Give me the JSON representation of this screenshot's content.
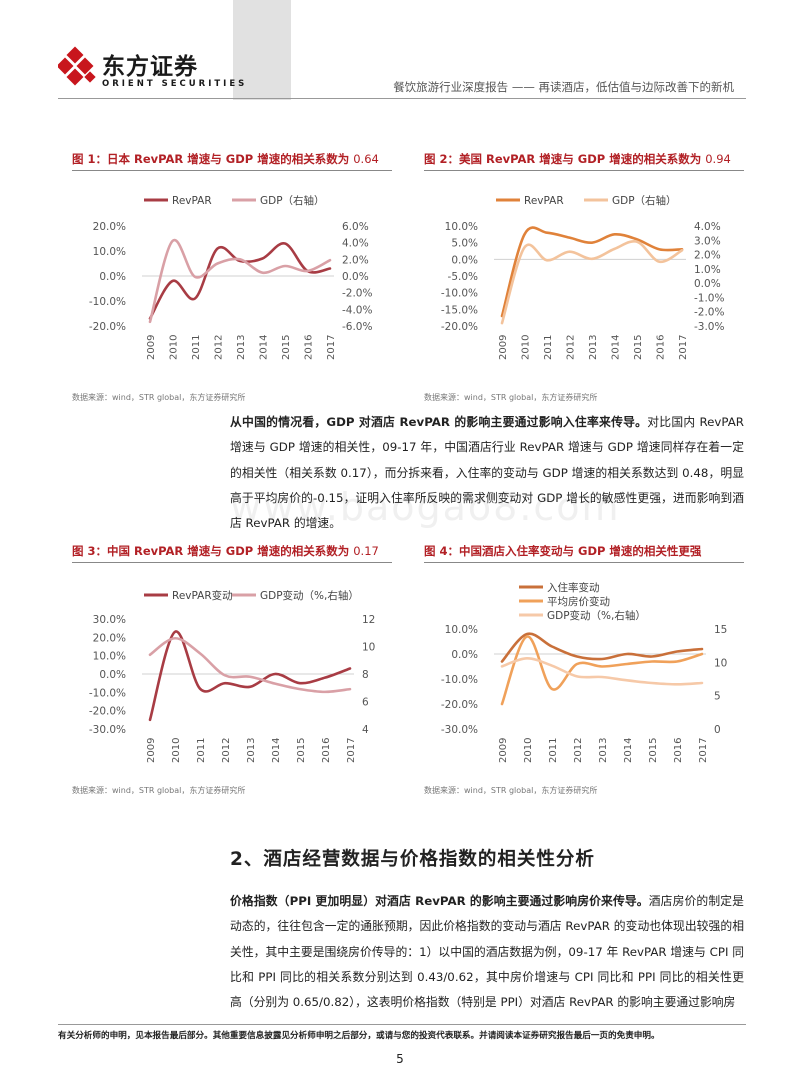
{
  "header": {
    "logo_cn": "东方证券",
    "logo_en": "ORIENT SECURITIES",
    "report_title": "餐饮旅游行业深度报告 —— 再读酒店，低估值与边际改善下的新机"
  },
  "watermark": "www.baogao8.com",
  "figures": [
    {
      "title": "图 1：日本 RevPAR 增速与 GDP 增速的相关系数为 ",
      "coef": "0.64",
      "source": "数据来源：wind，STR global，东方证券研究所",
      "chart_data": {
        "type": "line",
        "categories": [
          "2009",
          "2010",
          "2011",
          "2012",
          "2013",
          "2014",
          "2015",
          "2016",
          "2017"
        ],
        "series": [
          {
            "name": "RevPAR",
            "axis": "left",
            "color": "#a83c44",
            "values": [
              -17,
              -2,
              -9,
              11,
              6,
              7,
              13,
              2,
              3
            ]
          },
          {
            "name": "GDP（右轴）",
            "axis": "right",
            "color": "#d9a0a6",
            "values": [
              -5.5,
              4.2,
              -0.1,
              1.5,
              2.0,
              0.4,
              1.2,
              0.6,
              1.9
            ]
          }
        ],
        "ylim_left": [
          -20,
          20
        ],
        "ylim_right": [
          -6,
          6
        ],
        "left_ticks": [
          "20.0%",
          "10.0%",
          "0.0%",
          "-10.0%",
          "-20.0%"
        ],
        "right_ticks": [
          "6.0%",
          "4.0%",
          "2.0%",
          "0.0%",
          "-2.0%",
          "-4.0%",
          "-6.0%"
        ]
      }
    },
    {
      "title": "图 2：美国 RevPAR 增速与 GDP 增速的相关系数为 ",
      "coef": "0.94",
      "source": "数据来源：wind，STR global，东方证券研究所",
      "chart_data": {
        "type": "line",
        "categories": [
          "2009",
          "2010",
          "2011",
          "2012",
          "2013",
          "2014",
          "2015",
          "2016",
          "2017"
        ],
        "series": [
          {
            "name": "RevPAR",
            "axis": "left",
            "color": "#e0823a",
            "values": [
              -17,
              7.5,
              8,
              6.5,
              5,
              7.5,
              6,
              3,
              3
            ]
          },
          {
            "name": "GDP（右轴）",
            "axis": "right",
            "color": "#f3c39c",
            "values": [
              -2.8,
              2.5,
              1.6,
              2.2,
              1.7,
              2.4,
              2.9,
              1.5,
              2.3
            ]
          }
        ],
        "ylim_left": [
          -20,
          10
        ],
        "ylim_right": [
          -3,
          4
        ],
        "left_ticks": [
          "10.0%",
          "5.0%",
          "0.0%",
          "-5.0%",
          "-10.0%",
          "-15.0%",
          "-20.0%"
        ],
        "right_ticks": [
          "4.0%",
          "3.0%",
          "2.0%",
          "1.0%",
          "0.0%",
          "-1.0%",
          "-2.0%",
          "-3.0%"
        ]
      }
    },
    {
      "title": "图 3：中国 RevPAR 增速与 GDP 增速的相关系数为 ",
      "coef": "0.17",
      "source": "数据来源：wind，STR global，东方证券研究所",
      "chart_data": {
        "type": "line",
        "categories": [
          "2009",
          "2010",
          "2011",
          "2012",
          "2013",
          "2014",
          "2015",
          "2016",
          "2017"
        ],
        "series": [
          {
            "name": "RevPAR变动",
            "axis": "left",
            "color": "#a83c44",
            "values": [
              -25,
              23,
              -8,
              -5,
              -7,
              0,
              -5,
              -2,
              3
            ]
          },
          {
            "name": "GDP变动（%,右轴）",
            "axis": "right",
            "color": "#d9a0a6",
            "values": [
              9.4,
              10.6,
              9.5,
              7.9,
              7.8,
              7.3,
              6.9,
              6.7,
              6.9
            ]
          }
        ],
        "ylim_left": [
          -30,
          30
        ],
        "ylim_right": [
          4,
          12
        ],
        "left_ticks": [
          "30.0%",
          "20.0%",
          "10.0%",
          "0.0%",
          "-10.0%",
          "-20.0%",
          "-30.0%"
        ],
        "right_ticks": [
          "12",
          "10",
          "8",
          "6",
          "4"
        ]
      }
    },
    {
      "title": "图 4：中国酒店入住率变动与 GDP 增速的相关性更强",
      "coef": "",
      "source": "数据来源：wind，STR global，东方证券研究所",
      "chart_data": {
        "type": "line",
        "categories": [
          "2009",
          "2010",
          "2011",
          "2012",
          "2013",
          "2014",
          "2015",
          "2016",
          "2017"
        ],
        "series": [
          {
            "name": "入住率变动",
            "axis": "left",
            "color": "#c9703a",
            "values": [
              -3,
              8,
              3,
              -1,
              -2,
              0,
              -1,
              1,
              2
            ]
          },
          {
            "name": "平均房价变动",
            "axis": "left",
            "color": "#f0a15a",
            "values": [
              -20,
              7,
              -14,
              -4,
              -5,
              -4,
              -3,
              -3,
              0
            ]
          },
          {
            "name": "GDP变动（%,右轴）",
            "axis": "right",
            "color": "#f6c9a8",
            "values": [
              9.4,
              10.6,
              9.5,
              7.9,
              7.8,
              7.3,
              6.9,
              6.7,
              6.9
            ]
          }
        ],
        "ylim_left": [
          -30,
          10
        ],
        "ylim_right": [
          0,
          15
        ],
        "left_ticks": [
          "10.0%",
          "0.0%",
          "-10.0%",
          "-20.0%",
          "-30.0%"
        ],
        "right_ticks": [
          "15",
          "10",
          "5",
          "0"
        ]
      }
    }
  ],
  "para1": {
    "bold": "从中国的情况看，GDP 对酒店 RevPAR 的影响主要通过影响入住率来传导。",
    "text": "对比国内 RevPAR 增速与 GDP 增速的相关性，09-17 年，中国酒店行业 RevPAR 增速与 GDP 增速同样存在着一定的相关性（相关系数 0.17），而分拆来看，入住率的变动与 GDP 增速的相关系数达到 0.48，明显高于平均房价的-0.15，证明入住率所反映的需求侧变动对 GDP 增长的敏感性更强，进而影响到酒店 RevPAR 的增速。"
  },
  "section_heading": "2、酒店经营数据与价格指数的相关性分析",
  "para2": {
    "bold": "价格指数（PPI 更加明显）对酒店 RevPAR 的影响主要通过影响房价来传导。",
    "text": "酒店房价的制定是动态的，往往包含一定的通胀预期，因此价格指数的变动与酒店 RevPAR 的变动也体现出较强的相关性，其中主要是围绕房价传导的：1）以中国的酒店数据为例，09-17 年 RevPAR 增速与 CPI 同比和 PPI 同比的相关系数分别达到 0.43/0.62，其中房价增速与 CPI 同比和 PPI 同比的相关性更高（分别为 0.65/0.82），这表明价格指数（特别是 PPI）对酒店 RevPAR 的影响主要通过影响房"
  },
  "footer": "有关分析师的申明，见本报告最后部分。其他重要信息披露见分析师申明之后部分，或请与您的投资代表联系。并请阅读本证券研究报告最后一页的免责申明。",
  "page_number": "5"
}
